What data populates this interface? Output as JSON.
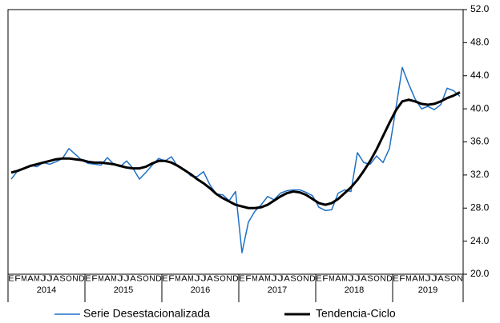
{
  "chart_data": {
    "type": "line",
    "categories": [
      "E",
      "F",
      "M",
      "A",
      "M",
      "J",
      "J",
      "A",
      "S",
      "O",
      "N",
      "D",
      "E",
      "F",
      "M",
      "A",
      "M",
      "J",
      "J",
      "A",
      "S",
      "O",
      "N",
      "D",
      "E",
      "F",
      "M",
      "A",
      "M",
      "J",
      "J",
      "A",
      "S",
      "O",
      "N",
      "D",
      "E",
      "F",
      "M",
      "A",
      "M",
      "J",
      "J",
      "A",
      "S",
      "O",
      "N",
      "D",
      "E",
      "F",
      "M",
      "A",
      "M",
      "J",
      "J",
      "A",
      "S",
      "O",
      "N",
      "D",
      "E",
      "F",
      "M",
      "A",
      "M",
      "J",
      "J",
      "A",
      "S",
      "O",
      "N"
    ],
    "years": [
      "2014",
      "2015",
      "2016",
      "2017",
      "2018",
      "2019"
    ],
    "series": [
      {
        "name": "Serie Desestacionalizada",
        "color": "#1f6fc5",
        "values": [
          31.5,
          32.5,
          32.8,
          33.2,
          33.0,
          33.5,
          33.3,
          33.6,
          34.0,
          35.2,
          34.5,
          33.8,
          33.4,
          33.3,
          33.2,
          34.1,
          33.3,
          33.0,
          33.7,
          32.8,
          31.5,
          32.3,
          33.2,
          34.0,
          33.7,
          34.2,
          33.0,
          32.7,
          31.9,
          31.8,
          32.4,
          30.8,
          29.7,
          29.6,
          28.9,
          30.0,
          22.6,
          26.3,
          27.6,
          28.4,
          29.4,
          29.0,
          29.8,
          30.1,
          30.2,
          30.2,
          29.9,
          29.5,
          28.1,
          27.7,
          27.8,
          29.8,
          30.2,
          30.0,
          34.7,
          33.5,
          33.3,
          34.3,
          33.5,
          35.2,
          40.0,
          45.0,
          43.0,
          41.2,
          40.0,
          40.3,
          39.9,
          40.5,
          42.5,
          42.2,
          41.5
        ]
      },
      {
        "name": "Tendencia-Ciclo",
        "color": "#000000",
        "values": [
          32.3,
          32.5,
          32.8,
          33.1,
          33.3,
          33.5,
          33.7,
          33.9,
          34.0,
          34.0,
          33.9,
          33.8,
          33.6,
          33.5,
          33.5,
          33.4,
          33.3,
          33.1,
          32.9,
          32.8,
          32.8,
          33.0,
          33.4,
          33.7,
          33.7,
          33.5,
          33.1,
          32.6,
          32.1,
          31.5,
          31.0,
          30.4,
          29.7,
          29.2,
          28.8,
          28.4,
          28.2,
          28.0,
          28.0,
          28.1,
          28.4,
          28.9,
          29.4,
          29.8,
          30.0,
          29.9,
          29.6,
          29.1,
          28.6,
          28.4,
          28.6,
          29.1,
          29.8,
          30.5,
          31.4,
          32.5,
          33.7,
          35.1,
          36.7,
          38.3,
          39.8,
          40.9,
          41.1,
          40.9,
          40.6,
          40.5,
          40.6,
          40.9,
          41.3,
          41.6,
          42.0
        ]
      }
    ],
    "ylim": [
      20,
      52
    ],
    "yticks": [
      {
        "value": 20,
        "label": "20.0"
      },
      {
        "value": 24,
        "label": "24.0"
      },
      {
        "value": 28,
        "label": "28.0"
      },
      {
        "value": 32,
        "label": "32.0"
      },
      {
        "value": 36,
        "label": "36.0"
      },
      {
        "value": 40,
        "label": "40.0"
      },
      {
        "value": 44,
        "label": "44.0"
      },
      {
        "value": 48,
        "label": "48.0"
      },
      {
        "value": 52,
        "label": "52.0"
      }
    ]
  }
}
